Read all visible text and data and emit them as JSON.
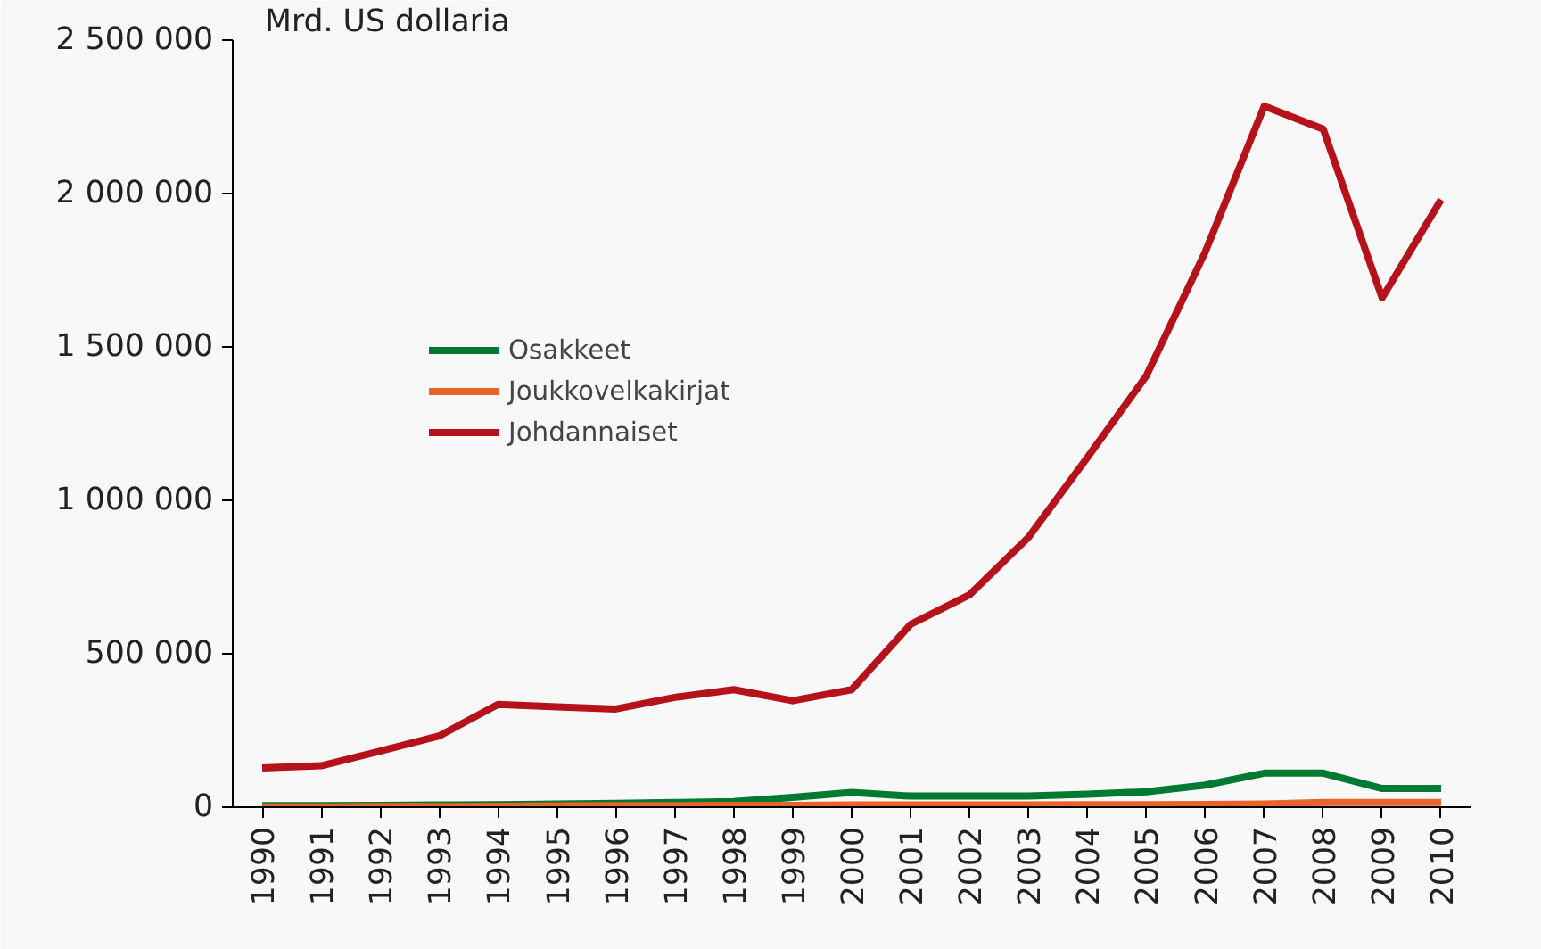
{
  "chart_data": {
    "type": "line",
    "title": "Mrd. US dollaria",
    "x": [
      1990,
      1991,
      1992,
      1993,
      1994,
      1995,
      1996,
      1997,
      1998,
      1999,
      2000,
      2001,
      2002,
      2003,
      2004,
      2005,
      2006,
      2007,
      2008,
      2009,
      2010
    ],
    "xlim": [
      1989.5,
      2010.5
    ],
    "xticks": [
      {
        "value": 1990,
        "label": "1990"
      },
      {
        "value": 1991,
        "label": "1991"
      },
      {
        "value": 1992,
        "label": "1992"
      },
      {
        "value": 1993,
        "label": "1993"
      },
      {
        "value": 1994,
        "label": "1994"
      },
      {
        "value": 1995,
        "label": "1995"
      },
      {
        "value": 1996,
        "label": "1996"
      },
      {
        "value": 1997,
        "label": "1997"
      },
      {
        "value": 1998,
        "label": "1998"
      },
      {
        "value": 1999,
        "label": "1999"
      },
      {
        "value": 2000,
        "label": "2000"
      },
      {
        "value": 2001,
        "label": "2001"
      },
      {
        "value": 2002,
        "label": "2002"
      },
      {
        "value": 2003,
        "label": "2003"
      },
      {
        "value": 2004,
        "label": "2004"
      },
      {
        "value": 2005,
        "label": "2005"
      },
      {
        "value": 2006,
        "label": "2006"
      },
      {
        "value": 2007,
        "label": "2007"
      },
      {
        "value": 2008,
        "label": "2008"
      },
      {
        "value": 2009,
        "label": "2009"
      },
      {
        "value": 2010,
        "label": "2010"
      }
    ],
    "ylim": [
      0,
      2500000
    ],
    "yticks": [
      {
        "value": 0,
        "label": "0"
      },
      {
        "value": 500000,
        "label": "500 000"
      },
      {
        "value": 1000000,
        "label": "1 000 000"
      },
      {
        "value": 1500000,
        "label": "1 500 000"
      },
      {
        "value": 2000000,
        "label": "2 000 000"
      },
      {
        "value": 2500000,
        "label": "2 500 000"
      }
    ],
    "grid": false,
    "legend": "top left",
    "marker": "none",
    "line_style": "solid",
    "series": [
      {
        "name": "Osakkeet",
        "color": "#007a33",
        "values": [
          5000,
          5000,
          6000,
          7000,
          8000,
          10000,
          12000,
          15000,
          18000,
          32000,
          48000,
          36000,
          36000,
          36000,
          42000,
          50000,
          72000,
          111000,
          111000,
          61000,
          61000
        ]
      },
      {
        "name": "Joukkovelkakirjat",
        "color": "#e8642a",
        "values": [
          1000,
          1000,
          2000,
          2000,
          3000,
          4000,
          5000,
          5000,
          6000,
          6000,
          7000,
          7000,
          7000,
          7000,
          8000,
          8000,
          9000,
          10000,
          15000,
          15000,
          15000
        ]
      },
      {
        "name": "Johdannaiset",
        "color": "#b5121b",
        "values": [
          128000,
          135000,
          183000,
          232000,
          335000,
          327000,
          320000,
          358000,
          383000,
          347000,
          383000,
          596000,
          692000,
          880000,
          1140000,
          1406000,
          1810000,
          2285000,
          2210000,
          1660000,
          1980000
        ]
      }
    ]
  }
}
